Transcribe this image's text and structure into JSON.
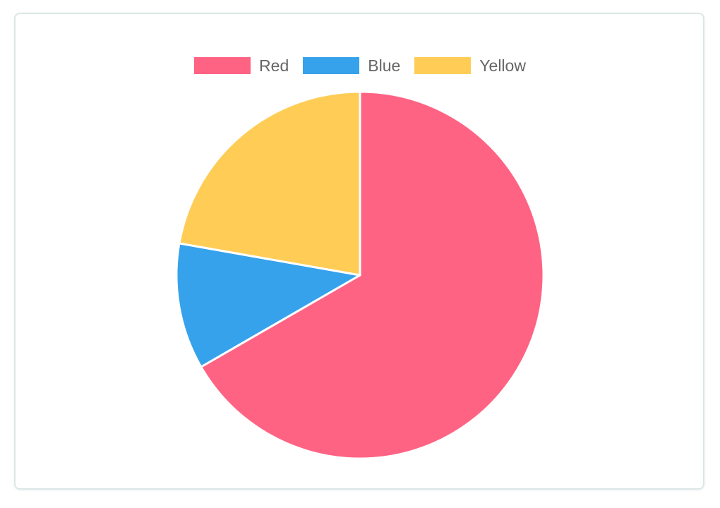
{
  "chart_data": {
    "type": "pie",
    "title": "",
    "legend_position": "top",
    "slices": [
      {
        "label": "Red",
        "value": 300,
        "color": "#ff6384"
      },
      {
        "label": "Blue",
        "value": 50,
        "color": "#36a2eb"
      },
      {
        "label": "Yellow",
        "value": 100,
        "color": "#ffcd56"
      }
    ]
  }
}
